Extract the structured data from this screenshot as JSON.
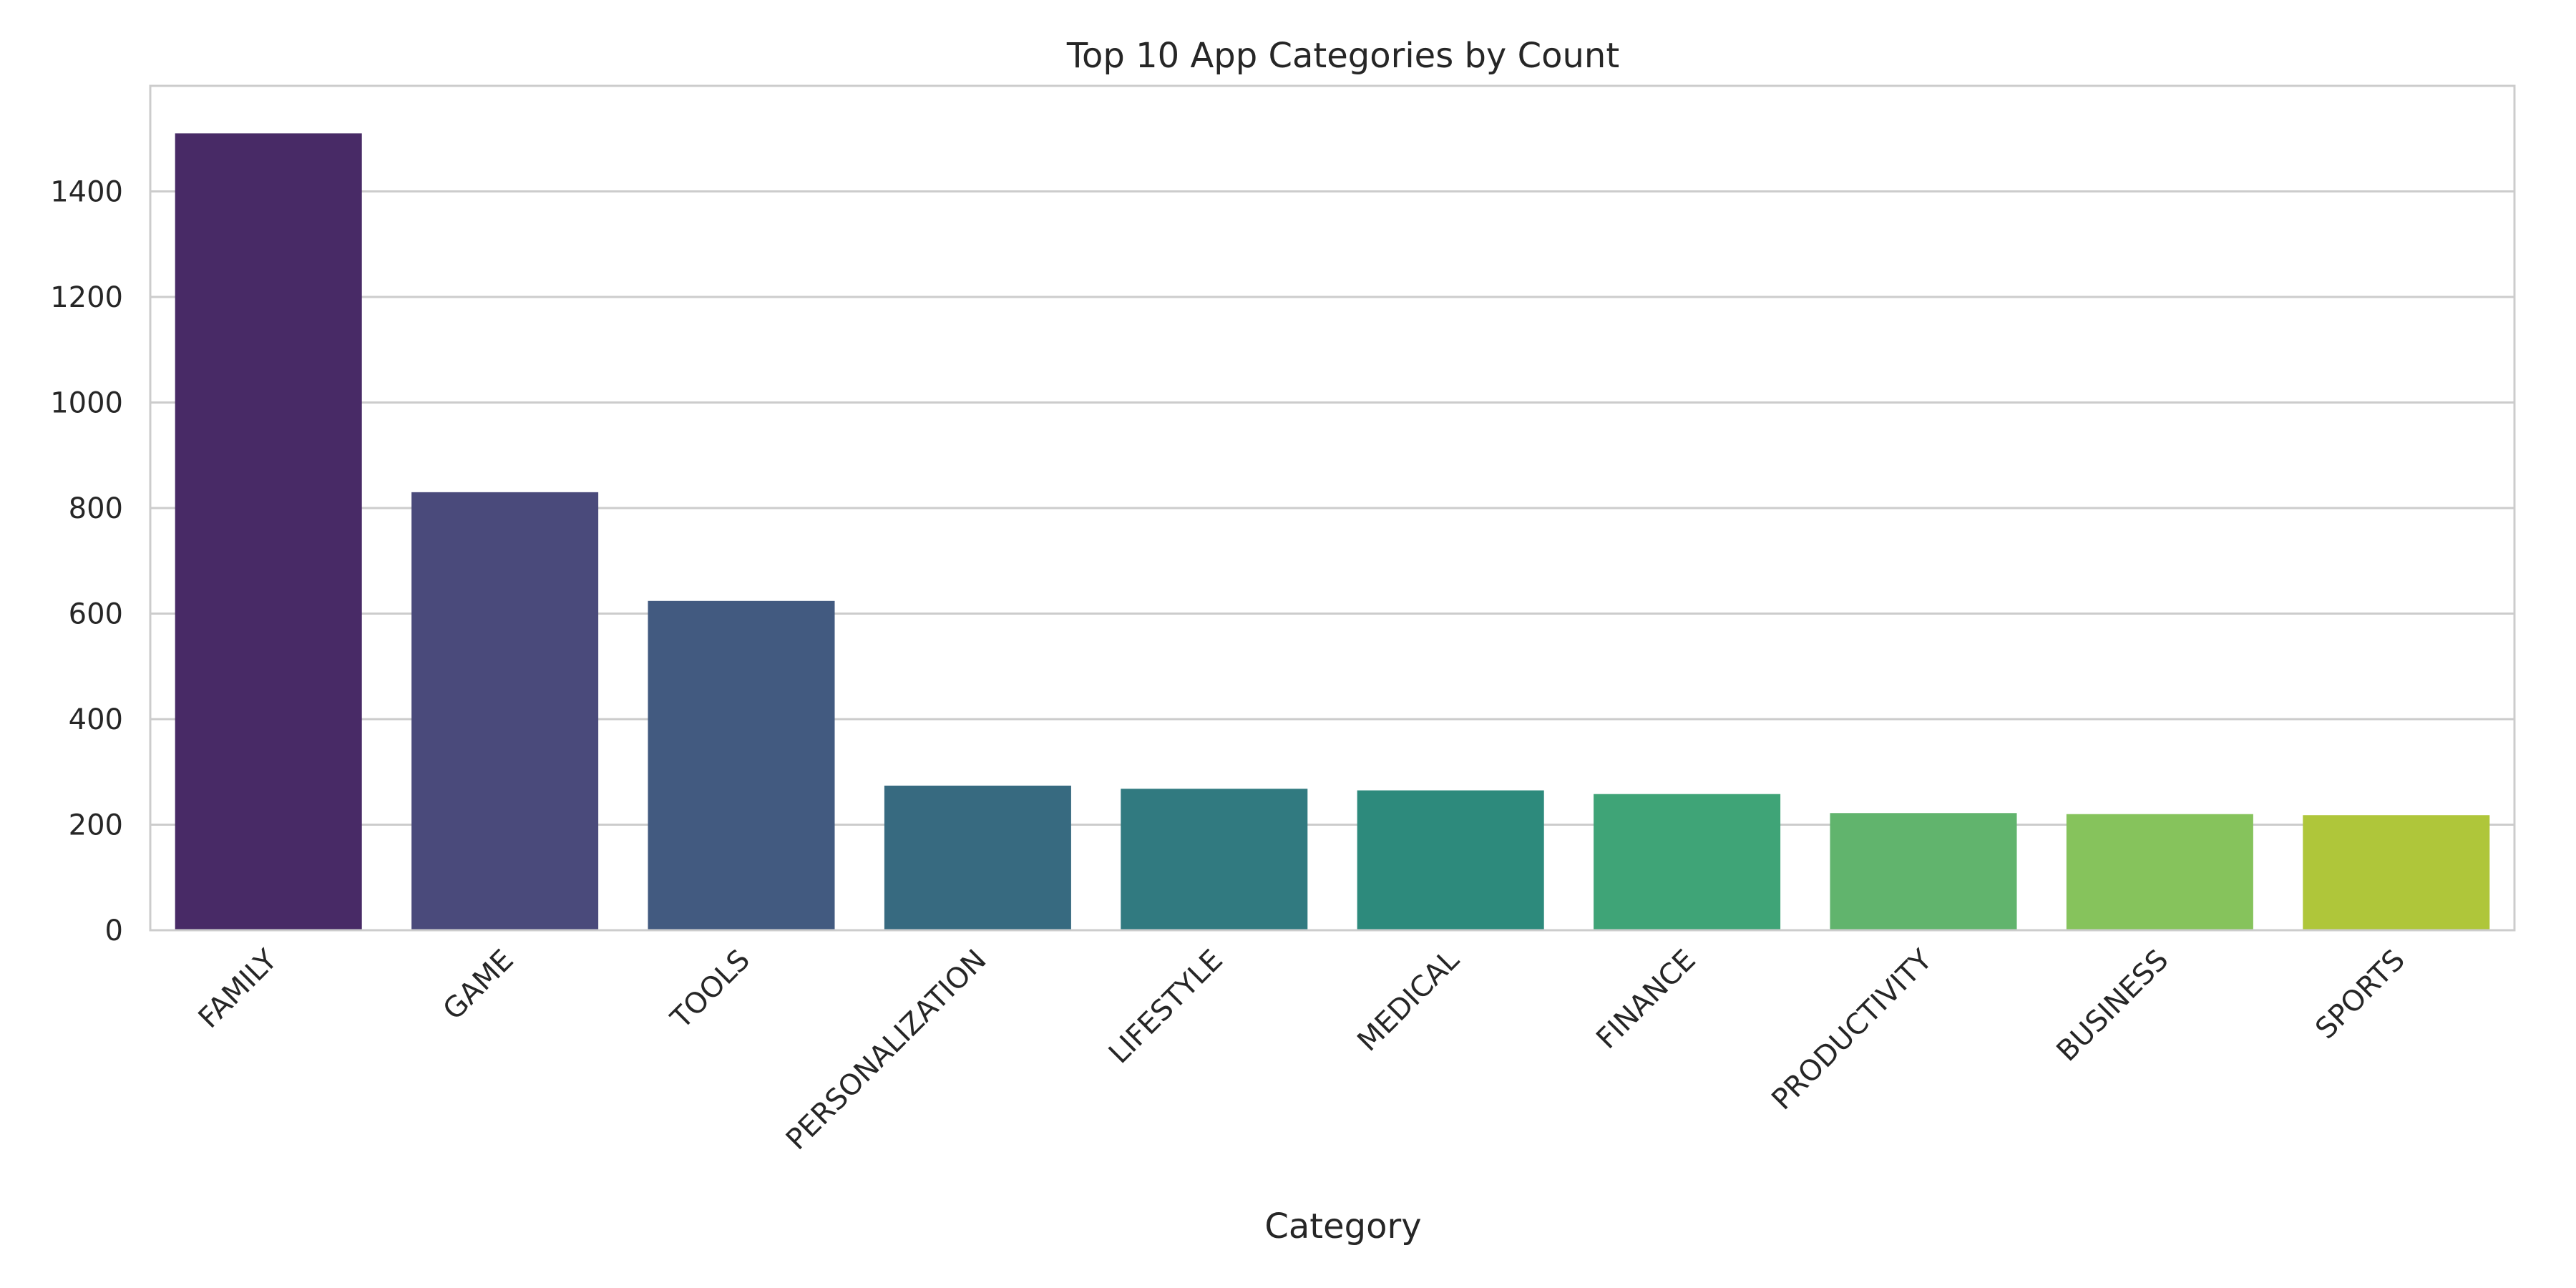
{
  "chart_data": {
    "type": "bar",
    "title": "Top 10 App Categories by Count",
    "xlabel": "Category",
    "ylabel": "",
    "categories": [
      "FAMILY",
      "GAME",
      "TOOLS",
      "PERSONALIZATION",
      "LIFESTYLE",
      "MEDICAL",
      "FINANCE",
      "PRODUCTIVITY",
      "BUSINESS",
      "SPORTS"
    ],
    "values": [
      1510,
      830,
      624,
      274,
      268,
      265,
      258,
      222,
      220,
      218
    ],
    "colors": [
      "#482A66",
      "#4A4A7B",
      "#425A80",
      "#376A80",
      "#317A80",
      "#2D8A7C",
      "#3FA477",
      "#61B46D",
      "#86C35C",
      "#AFC63A"
    ],
    "ylim": [
      0,
      1600
    ],
    "yticks": [
      0,
      200,
      400,
      600,
      800,
      1000,
      1200,
      1400
    ],
    "grid": "horizontal",
    "legend": "none"
  }
}
